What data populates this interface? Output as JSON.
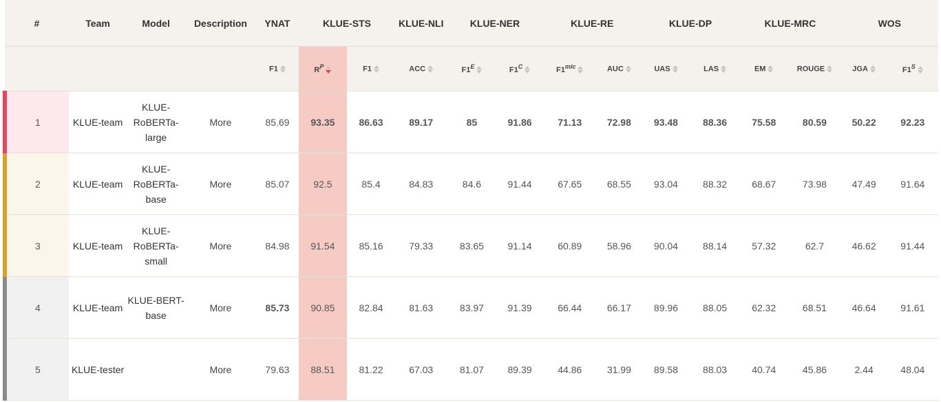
{
  "header": {
    "rank": "#",
    "team": "Team",
    "model": "Model",
    "description": "Description",
    "groups": [
      "YNAT",
      "KLUE-STS",
      "KLUE-NLI",
      "KLUE-NER",
      "KLUE-RE",
      "KLUE-DP",
      "KLUE-MRC",
      "WOS"
    ]
  },
  "metrics": [
    {
      "base": "F1",
      "sup": ""
    },
    {
      "base": "R",
      "sup": "P"
    },
    {
      "base": "F1",
      "sup": ""
    },
    {
      "base": "ACC",
      "sup": ""
    },
    {
      "base": "F1",
      "sup": "E"
    },
    {
      "base": "F1",
      "sup": "C"
    },
    {
      "base": "F1",
      "sup": "mic"
    },
    {
      "base": "AUC",
      "sup": ""
    },
    {
      "base": "UAS",
      "sup": ""
    },
    {
      "base": "LAS",
      "sup": ""
    },
    {
      "base": "EM",
      "sup": ""
    },
    {
      "base": "ROUGE",
      "sup": ""
    },
    {
      "base": "JGA",
      "sup": ""
    },
    {
      "base": "F1",
      "sup": "S"
    }
  ],
  "rows": [
    {
      "rank": "1",
      "team": "KLUE-team",
      "model": "KLUE-RoBERTa-large",
      "description": "More",
      "scores": [
        "85.69",
        "93.35",
        "86.63",
        "89.17",
        "85",
        "91.86",
        "71.13",
        "72.98",
        "93.48",
        "88.36",
        "75.58",
        "80.59",
        "50.22",
        "92.23"
      ]
    },
    {
      "rank": "2",
      "team": "KLUE-team",
      "model": "KLUE-RoBERTa-base",
      "description": "More",
      "scores": [
        "85.07",
        "92.5",
        "85.4",
        "84.83",
        "84.6",
        "91.44",
        "67.65",
        "68.55",
        "93.04",
        "88.32",
        "68.67",
        "73.98",
        "47.49",
        "91.64"
      ]
    },
    {
      "rank": "3",
      "team": "KLUE-team",
      "model": "KLUE-RoBERTa-small",
      "description": "More",
      "scores": [
        "84.98",
        "91.54",
        "85.16",
        "79.33",
        "83.65",
        "91.14",
        "60.89",
        "58.96",
        "90.04",
        "88.14",
        "57.32",
        "62.7",
        "46.62",
        "91.44"
      ]
    },
    {
      "rank": "4",
      "team": "KLUE-team",
      "model": "KLUE-BERT-base",
      "description": "More",
      "scores": [
        "85.73",
        "90.85",
        "82.84",
        "81.63",
        "83.97",
        "91.39",
        "66.44",
        "66.17",
        "89.96",
        "88.05",
        "62.32",
        "68.51",
        "46.64",
        "91.61"
      ]
    },
    {
      "rank": "5",
      "team": "KLUE-tester",
      "model": "",
      "description": "More",
      "scores": [
        "79.63",
        "88.51",
        "81.22",
        "67.03",
        "81.07",
        "89.39",
        "44.86",
        "31.99",
        "89.58",
        "88.03",
        "40.74",
        "45.86",
        "2.44",
        "48.04"
      ]
    }
  ],
  "best": [
    [
      false,
      true,
      true,
      true,
      true,
      true,
      true,
      true,
      true,
      true,
      true,
      true,
      true,
      true
    ],
    [
      false,
      false,
      false,
      false,
      false,
      false,
      false,
      false,
      false,
      false,
      false,
      false,
      false,
      false
    ],
    [
      false,
      false,
      false,
      false,
      false,
      false,
      false,
      false,
      false,
      false,
      false,
      false,
      false,
      false
    ],
    [
      true,
      false,
      false,
      false,
      false,
      false,
      false,
      false,
      false,
      false,
      false,
      false,
      false,
      false
    ],
    [
      false,
      false,
      false,
      false,
      false,
      false,
      false,
      false,
      false,
      false,
      false,
      false,
      false,
      false
    ]
  ],
  "sorted_metric_index": 1,
  "colors": {
    "highlight": "#e0405e",
    "selected_column": "#f6cbc3",
    "gold": "#d7a12e",
    "gray": "#8a8a8a"
  }
}
